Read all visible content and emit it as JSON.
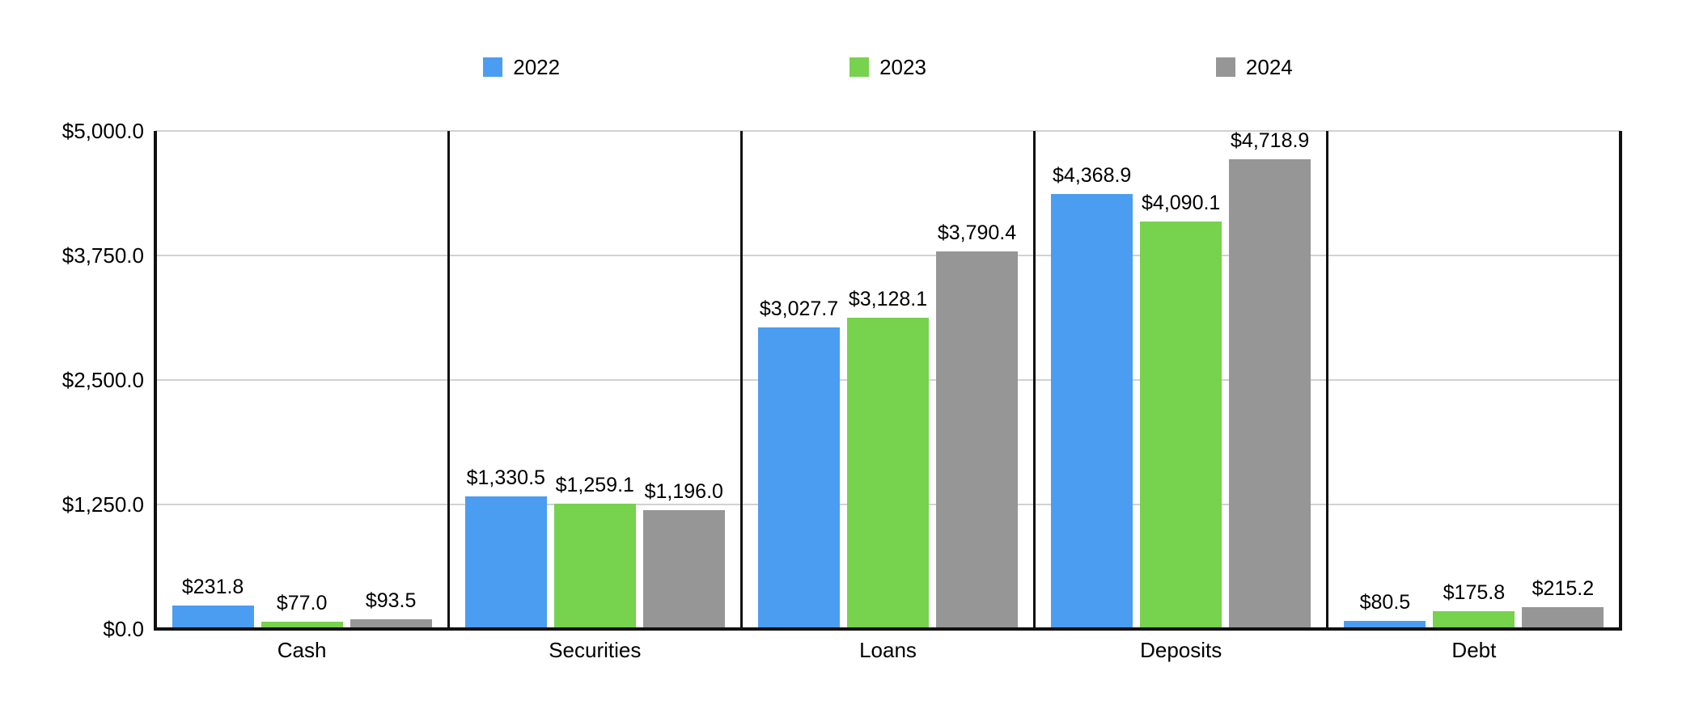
{
  "legend": {
    "items": [
      {
        "label": "2022",
        "color": "#4B9DF2"
      },
      {
        "label": "2023",
        "color": "#77D24D"
      },
      {
        "label": "2024",
        "color": "#969696"
      }
    ]
  },
  "colors": {
    "axis": "#111111",
    "gridline": "#d2d2d2",
    "background": "#ffffff"
  },
  "chart_data": {
    "type": "bar",
    "title": "",
    "xlabel": "",
    "ylabel": "",
    "categories": [
      "Cash",
      "Securities",
      "Loans",
      "Deposits",
      "Debt"
    ],
    "series": [
      {
        "name": "2022",
        "color": "#4B9DF2",
        "values": [
          231.8,
          1330.5,
          3027.7,
          4368.9,
          80.5
        ],
        "labels": [
          "$231.8",
          "$1,330.5",
          "$3,027.7",
          "$4,368.9",
          "$80.5"
        ]
      },
      {
        "name": "2023",
        "color": "#77D24D",
        "values": [
          77.0,
          1259.1,
          3128.1,
          4090.1,
          175.8
        ],
        "labels": [
          "$77.0",
          "$1,259.1",
          "$3,128.1",
          "$4,090.1",
          "$175.8"
        ]
      },
      {
        "name": "2024",
        "color": "#969696",
        "values": [
          93.5,
          1196.0,
          3790.4,
          4718.9,
          215.2
        ],
        "labels": [
          "$93.5",
          "$1,196.0",
          "$3,790.4",
          "$4,718.9",
          "$215.2"
        ]
      }
    ],
    "ylim": [
      0,
      5000
    ],
    "yticks": [
      {
        "value": 0,
        "label": "$0.0"
      },
      {
        "value": 1250,
        "label": "$1,250.0"
      },
      {
        "value": 2500,
        "label": "$2,500.0"
      },
      {
        "value": 3750,
        "label": "$3,750.0"
      },
      {
        "value": 5000,
        "label": "$5,000.0"
      }
    ],
    "grid": true,
    "legend_position": "top"
  }
}
